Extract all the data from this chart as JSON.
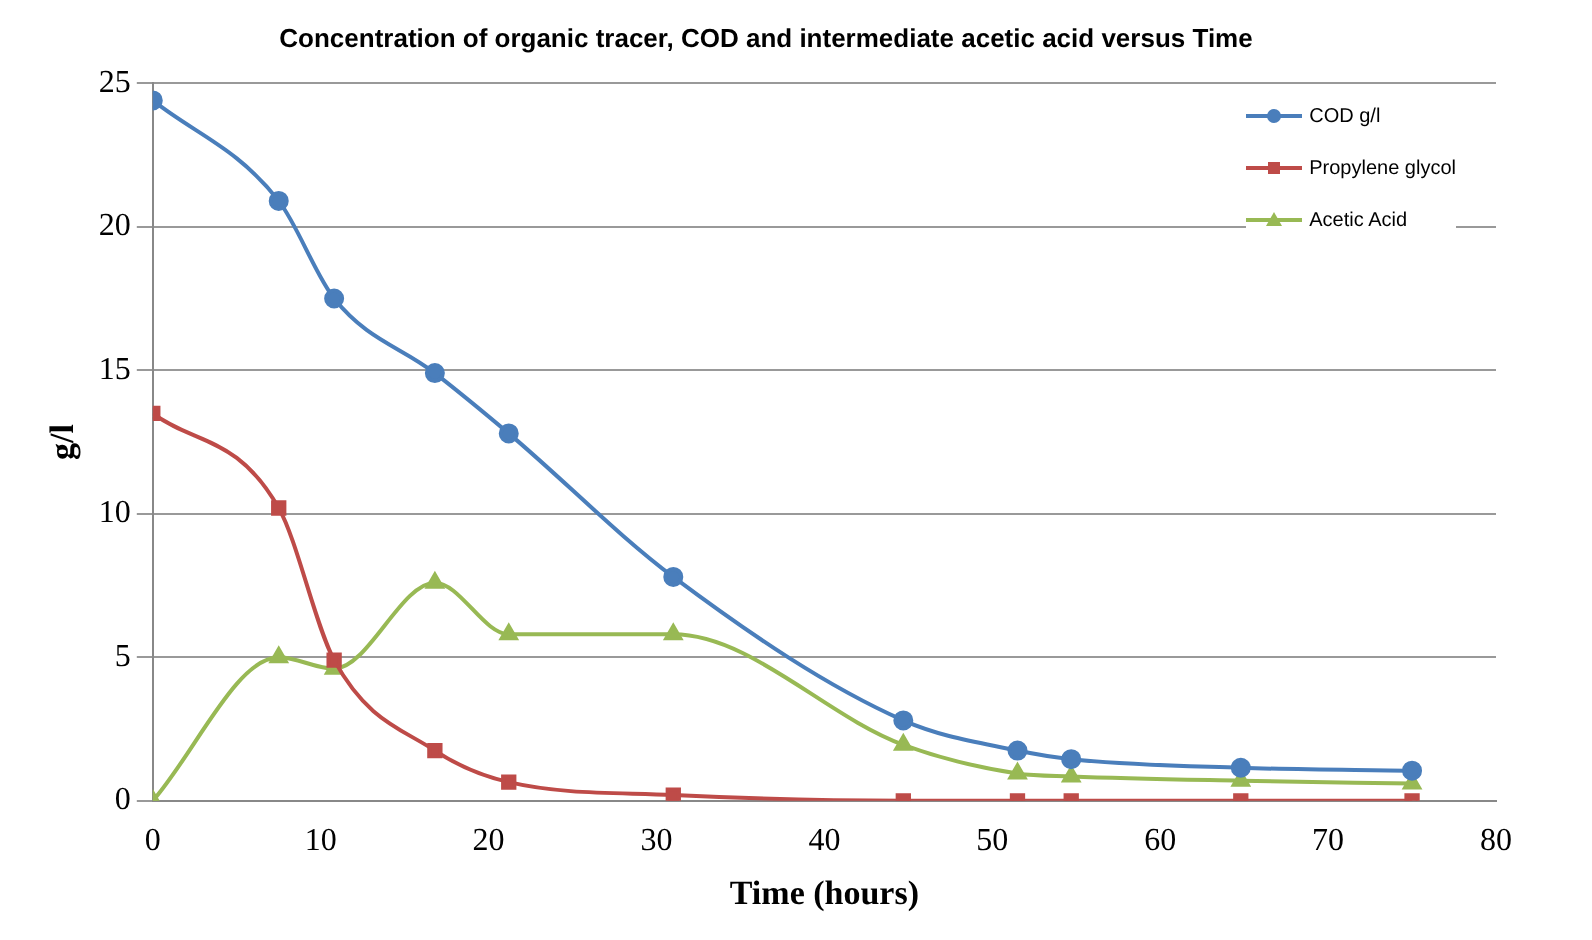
{
  "chart_data": {
    "type": "line",
    "title": "Concentration of organic tracer, COD and intermediate acetic acid versus Time",
    "xlabel": "Time (hours)",
    "ylabel": "g/l",
    "x": [
      0,
      7.5,
      10.8,
      16.8,
      21.2,
      31,
      44.7,
      51.5,
      54.7,
      64.8,
      75
    ],
    "series": [
      {
        "name": "COD g/l",
        "color": "#4a7ebb",
        "marker": "circle",
        "values": [
          24.4,
          20.9,
          17.5,
          14.9,
          12.8,
          7.8,
          2.8,
          1.75,
          1.45,
          1.15,
          1.05
        ]
      },
      {
        "name": "Propylene glycol",
        "color": "#be4b48",
        "marker": "square",
        "values": [
          13.5,
          10.2,
          4.9,
          1.75,
          0.65,
          0.2,
          0,
          0,
          0,
          0,
          0
        ]
      },
      {
        "name": "Acetic Acid",
        "color": "#98b954",
        "marker": "triangle",
        "values": [
          0,
          5.0,
          4.6,
          7.6,
          5.8,
          5.8,
          1.95,
          0.95,
          0.85,
          0.7,
          0.6
        ]
      }
    ],
    "xlim": [
      0,
      80
    ],
    "xticks": [
      0,
      10,
      20,
      30,
      40,
      50,
      60,
      70,
      80
    ],
    "ylim": [
      0,
      25
    ],
    "yticks": [
      0,
      5,
      10,
      15,
      20,
      25
    ],
    "grid": "y",
    "legend": "top right"
  }
}
